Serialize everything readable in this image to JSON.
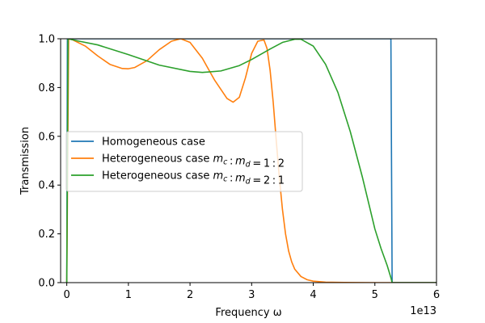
{
  "chart_data": {
    "type": "line",
    "xlabel": "Frequency ω",
    "ylabel": "Transmission",
    "x_offset_label": "1e13",
    "xlim": [
      -0.1,
      6.0
    ],
    "ylim": [
      0.0,
      1.0
    ],
    "x_unit_multiplier": 10000000000000.0,
    "xticks": [
      0,
      1,
      2,
      3,
      4,
      5,
      6
    ],
    "xtick_labels": [
      "0",
      "1",
      "2",
      "3",
      "4",
      "5",
      "6"
    ],
    "yticks": [
      0.0,
      0.2,
      0.4,
      0.6,
      0.8,
      1.0
    ],
    "ytick_labels": [
      "0.0",
      "0.2",
      "0.4",
      "0.6",
      "0.8",
      "1.0"
    ],
    "grid": false,
    "legend_position": "center-left",
    "legend": [
      {
        "prefix": "Homogeneous case",
        "math": "",
        "color": "#1f77b4"
      },
      {
        "prefix": "Heterogeneous case ",
        "math": "m_c : m_d = 1 : 2",
        "color": "#ff7f0e"
      },
      {
        "prefix": "Heterogeneous case ",
        "math": "m_c : m_d = 2 : 1",
        "color": "#2ca02c"
      }
    ],
    "series": [
      {
        "name": "Homogeneous case",
        "color": "#1f77b4",
        "x": [
          0.0,
          0.01,
          0.02,
          0.5,
          1.0,
          2.0,
          3.0,
          4.0,
          5.0,
          5.26,
          5.27,
          5.28,
          5.3,
          6.0
        ],
        "y": [
          0.0,
          1.0,
          1.0,
          1.0,
          1.0,
          1.0,
          1.0,
          1.0,
          1.0,
          1.0,
          0.5,
          0.0,
          0.0,
          0.0
        ]
      },
      {
        "name": "Heterogeneous case m_c : m_d = 1 : 2",
        "color": "#ff7f0e",
        "x": [
          0.0,
          0.03,
          0.1,
          0.3,
          0.5,
          0.7,
          0.9,
          1.0,
          1.1,
          1.3,
          1.5,
          1.7,
          1.85,
          2.0,
          2.2,
          2.4,
          2.6,
          2.7,
          2.8,
          2.9,
          3.0,
          3.1,
          3.2,
          3.25,
          3.3,
          3.35,
          3.4,
          3.45,
          3.5,
          3.55,
          3.6,
          3.65,
          3.7,
          3.8,
          3.9,
          4.0,
          4.2,
          4.5,
          5.0,
          5.3,
          6.0
        ],
        "y": [
          0.0,
          1.0,
          0.995,
          0.97,
          0.93,
          0.895,
          0.878,
          0.877,
          0.882,
          0.91,
          0.955,
          0.99,
          1.0,
          0.985,
          0.92,
          0.83,
          0.755,
          0.74,
          0.76,
          0.84,
          0.94,
          0.99,
          0.995,
          0.96,
          0.87,
          0.74,
          0.58,
          0.43,
          0.3,
          0.2,
          0.13,
          0.085,
          0.055,
          0.025,
          0.012,
          0.006,
          0.002,
          0.0005,
          0.0,
          0.0,
          0.0
        ]
      },
      {
        "name": "Heterogeneous case m_c : m_d = 2 : 1",
        "color": "#2ca02c",
        "x": [
          0.0,
          0.02,
          0.2,
          0.5,
          1.0,
          1.5,
          2.0,
          2.2,
          2.5,
          2.8,
          3.0,
          3.3,
          3.5,
          3.7,
          3.8,
          4.0,
          4.2,
          4.4,
          4.6,
          4.8,
          5.0,
          5.1,
          5.2,
          5.26,
          5.28,
          5.3,
          6.0
        ],
        "y": [
          0.0,
          1.0,
          0.99,
          0.975,
          0.935,
          0.892,
          0.866,
          0.862,
          0.868,
          0.89,
          0.915,
          0.958,
          0.985,
          0.998,
          0.998,
          0.97,
          0.895,
          0.78,
          0.62,
          0.43,
          0.22,
          0.14,
          0.07,
          0.02,
          0.0,
          0.0,
          0.0
        ]
      }
    ]
  }
}
